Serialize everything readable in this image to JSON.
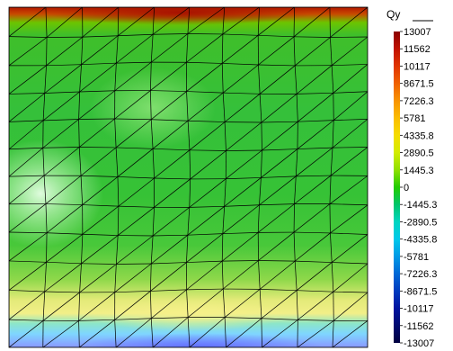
{
  "legend": {
    "title": "Qy",
    "labels": [
      "13007",
      "11562",
      "10117",
      "8671.5",
      "7226.3",
      "5781",
      "4335.8",
      "2890.5",
      "1445.3",
      "0",
      "-1445.3",
      "-2890.5",
      "-4335.8",
      "-5781",
      "-7226.3",
      "-8671.5",
      "-10117",
      "-11562",
      "-13007"
    ],
    "colors": [
      "#8b0000",
      "#c11200",
      "#e03400",
      "#f06100",
      "#f89300",
      "#fbbd00",
      "#f5dc00",
      "#d2ec00",
      "#8fe000",
      "#22cc00",
      "#00c56a",
      "#00d5c0",
      "#00c8ea",
      "#009ae6",
      "#0068d6",
      "#003bbf",
      "#0014a0",
      "#000a70",
      "#000040"
    ]
  },
  "mesh": {
    "grid_columns": 10,
    "grid_rows": 12,
    "diagonal": "bottom-left-to-top-right"
  }
}
